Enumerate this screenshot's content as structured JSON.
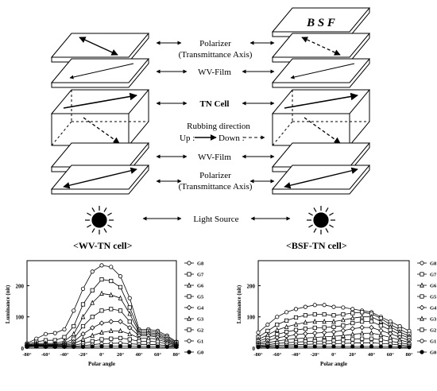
{
  "diagram": {
    "labels": {
      "bsf": "B S F",
      "polarizer": "Polarizer",
      "transmittance_axis": "(Transmittance Axis)",
      "wv_film": "WV-Film",
      "tn_cell": "TN Cell",
      "rubbing_direction": "Rubbing direction",
      "up": "Up :",
      "down": "Down :",
      "light_source": "Light Source"
    }
  },
  "chart_data": [
    {
      "type": "line",
      "title": "<WV-TN cell>",
      "xlabel": "Polar angle",
      "ylabel": "Luminance (nit)",
      "xlim": [
        -80,
        80
      ],
      "ylim": [
        0,
        280
      ],
      "x_ticks": [
        "-80°",
        "-60°",
        "-40°",
        "-20°",
        "0°",
        "20°",
        "40°",
        "60°",
        "80°"
      ],
      "y_ticks": [
        0,
        100,
        200
      ],
      "legend_position": "right",
      "x": [
        -80,
        -70,
        -60,
        -50,
        -40,
        -30,
        -20,
        -10,
        0,
        10,
        20,
        30,
        40,
        50,
        60,
        70,
        80
      ],
      "series": [
        {
          "name": "G8",
          "values": [
            15,
            30,
            45,
            48,
            60,
            120,
            190,
            245,
            265,
            260,
            230,
            160,
            60,
            60,
            55,
            40,
            20
          ]
        },
        {
          "name": "G7",
          "values": [
            12,
            20,
            25,
            25,
            35,
            70,
            140,
            185,
            220,
            215,
            195,
            130,
            55,
            55,
            50,
            35,
            18
          ]
        },
        {
          "name": "G6",
          "values": [
            10,
            15,
            15,
            15,
            22,
            45,
            100,
            145,
            175,
            170,
            160,
            110,
            50,
            50,
            45,
            30,
            15
          ]
        },
        {
          "name": "G5",
          "values": [
            9,
            12,
            12,
            12,
            15,
            30,
            70,
            100,
            120,
            125,
            120,
            85,
            45,
            45,
            40,
            27,
            12
          ]
        },
        {
          "name": "G4",
          "values": [
            8,
            10,
            10,
            10,
            12,
            20,
            45,
            65,
            80,
            85,
            85,
            65,
            40,
            40,
            35,
            22,
            10
          ]
        },
        {
          "name": "G3",
          "values": [
            7,
            8,
            8,
            8,
            9,
            14,
            28,
            40,
            50,
            55,
            55,
            45,
            32,
            32,
            28,
            18,
            8
          ]
        },
        {
          "name": "G2",
          "values": [
            6,
            7,
            7,
            6,
            7,
            9,
            15,
            22,
            28,
            30,
            32,
            28,
            22,
            22,
            20,
            13,
            6
          ]
        },
        {
          "name": "G1",
          "values": [
            5,
            6,
            5,
            5,
            5,
            6,
            8,
            11,
            14,
            15,
            16,
            14,
            12,
            12,
            11,
            8,
            5
          ]
        },
        {
          "name": "G0",
          "values": [
            4,
            5,
            4,
            4,
            4,
            4,
            4,
            5,
            6,
            6,
            6,
            6,
            5,
            5,
            5,
            4,
            4
          ]
        }
      ]
    },
    {
      "type": "line",
      "title": "<BSF-TN cell>",
      "xlabel": "Polar angle",
      "ylabel": "Luminance (nit)",
      "xlim": [
        -80,
        80
      ],
      "ylim": [
        0,
        280
      ],
      "x_ticks": [
        "-80°",
        "-60°",
        "-40°",
        "-20°",
        "0°",
        "20°",
        "40°",
        "60°",
        "80°"
      ],
      "y_ticks": [
        0,
        100,
        200
      ],
      "legend_position": "right",
      "x": [
        -80,
        -70,
        -60,
        -50,
        -40,
        -30,
        -20,
        -10,
        0,
        10,
        20,
        30,
        40,
        50,
        60,
        70,
        80
      ],
      "series": [
        {
          "name": "G8",
          "values": [
            50,
            75,
            100,
            115,
            125,
            132,
            138,
            138,
            132,
            130,
            125,
            120,
            115,
            100,
            85,
            70,
            55
          ]
        },
        {
          "name": "G7",
          "values": [
            35,
            55,
            75,
            88,
            98,
            105,
            108,
            108,
            105,
            108,
            112,
            115,
            110,
            95,
            75,
            60,
            45
          ]
        },
        {
          "name": "G6",
          "values": [
            28,
            42,
            58,
            68,
            76,
            82,
            85,
            85,
            85,
            90,
            96,
            100,
            100,
            85,
            68,
            52,
            38
          ]
        },
        {
          "name": "G5",
          "values": [
            22,
            32,
            44,
            52,
            58,
            62,
            65,
            66,
            68,
            72,
            80,
            85,
            85,
            72,
            58,
            44,
            32
          ]
        },
        {
          "name": "G4",
          "values": [
            16,
            24,
            33,
            38,
            43,
            46,
            48,
            50,
            52,
            56,
            62,
            66,
            66,
            56,
            46,
            35,
            25
          ]
        },
        {
          "name": "G3",
          "values": [
            12,
            17,
            23,
            27,
            30,
            32,
            34,
            36,
            38,
            40,
            44,
            47,
            48,
            42,
            34,
            26,
            18
          ]
        },
        {
          "name": "G2",
          "values": [
            8,
            11,
            15,
            17,
            19,
            21,
            22,
            23,
            24,
            26,
            28,
            30,
            30,
            27,
            22,
            17,
            12
          ]
        },
        {
          "name": "G1",
          "values": [
            5,
            7,
            9,
            10,
            11,
            12,
            13,
            13,
            14,
            15,
            16,
            17,
            17,
            15,
            13,
            10,
            7
          ]
        },
        {
          "name": "G0",
          "values": [
            3,
            4,
            4,
            5,
            5,
            5,
            5,
            5,
            5,
            5,
            5,
            5,
            5,
            5,
            5,
            4,
            3
          ]
        }
      ]
    }
  ]
}
